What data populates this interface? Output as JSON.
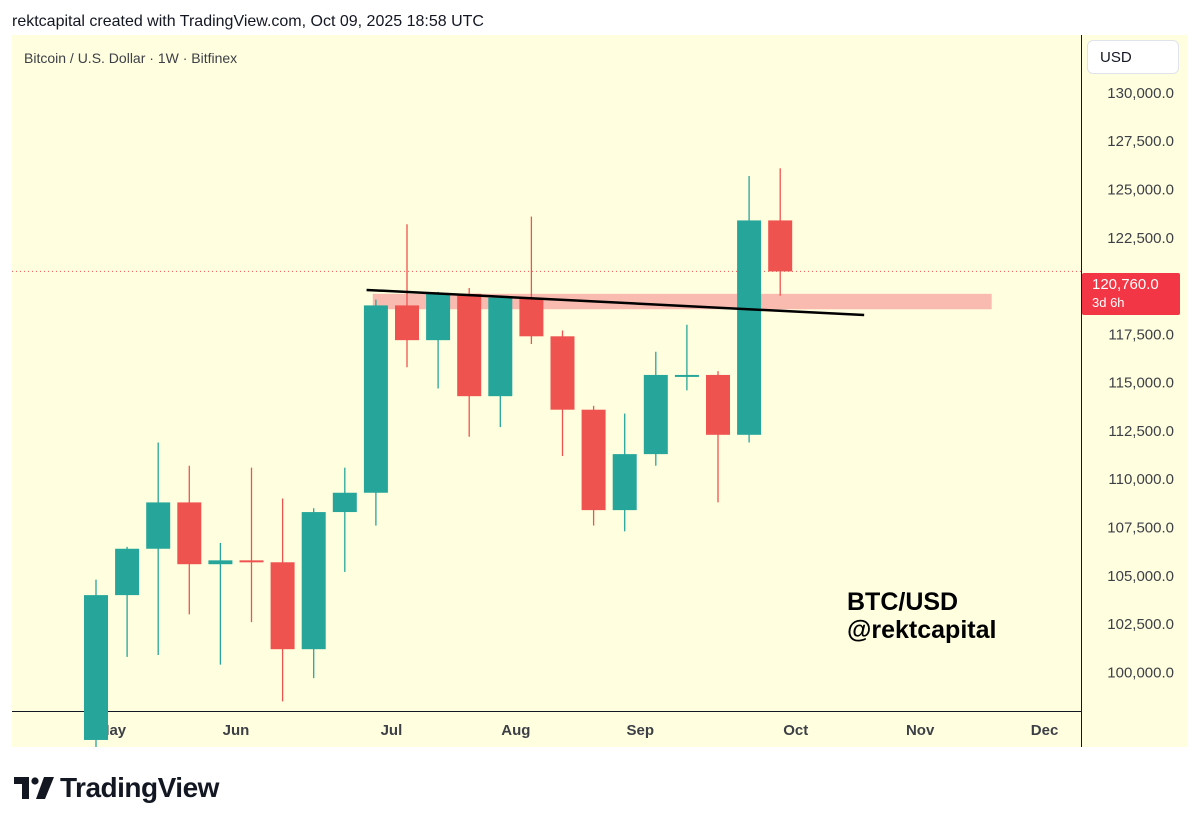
{
  "header": {
    "caption": "rektcapital created with TradingView.com, Oct 09, 2025 18:58 UTC"
  },
  "chart": {
    "symbol_title": "Bitcoin / U.S. Dollar · 1W · Bitfinex",
    "currency": "USD",
    "last_price_label": "120,760.0",
    "countdown": "3d 6h",
    "watermark_line1": "BTC/USD",
    "watermark_line2": "@rektcapital"
  },
  "colors": {
    "background": "#ffffe0",
    "up": "#26a69a",
    "down": "#ef5350",
    "zone": "#f7a3a0",
    "trendline": "#000000",
    "price_line": "#ef5350"
  },
  "footer": {
    "brand": "TradingView",
    "logo_icon": "tradingview-logo-icon"
  },
  "chart_data": {
    "type": "candlestick",
    "interval": "1W",
    "y_range": [
      98000,
      133000
    ],
    "y_ticks": [
      100000,
      102500,
      105000,
      107500,
      110000,
      112500,
      115000,
      117500,
      120000,
      122500,
      125000,
      127500,
      130000
    ],
    "y_tick_labels": [
      "100,000.0",
      "102,500.0",
      "105,000.0",
      "107,500.0",
      "110,000.0",
      "112,500.0",
      "115,000.0",
      "117,500.0",
      "120,000.0",
      "122,500.0",
      "125,000.0",
      "127,500.0",
      "130,000.0"
    ],
    "x_labels": [
      {
        "label": "May",
        "index": 0.5
      },
      {
        "label": "Jun",
        "index": 4.5
      },
      {
        "label": "Jul",
        "index": 9.5
      },
      {
        "label": "Aug",
        "index": 13.5
      },
      {
        "label": "Sep",
        "index": 17.5
      },
      {
        "label": "Oct",
        "index": 22.5
      },
      {
        "label": "Nov",
        "index": 26.5
      },
      {
        "label": "Dec",
        "index": 30.5
      }
    ],
    "candles": [
      {
        "o": 96500,
        "h": 104800,
        "l": 96000,
        "c": 104000
      },
      {
        "o": 104000,
        "h": 106500,
        "l": 100800,
        "c": 106400
      },
      {
        "o": 106400,
        "h": 111900,
        "l": 100900,
        "c": 108800
      },
      {
        "o": 108800,
        "h": 110700,
        "l": 103000,
        "c": 105600
      },
      {
        "o": 105600,
        "h": 106700,
        "l": 100400,
        "c": 105800
      },
      {
        "o": 105800,
        "h": 110600,
        "l": 102600,
        "c": 105700
      },
      {
        "o": 105700,
        "h": 109000,
        "l": 98500,
        "c": 101200
      },
      {
        "o": 101200,
        "h": 108500,
        "l": 99700,
        "c": 108300
      },
      {
        "o": 108300,
        "h": 110600,
        "l": 105200,
        "c": 109300
      },
      {
        "o": 109300,
        "h": 119300,
        "l": 107600,
        "c": 119000
      },
      {
        "o": 119000,
        "h": 123200,
        "l": 115800,
        "c": 117200
      },
      {
        "o": 117200,
        "h": 119700,
        "l": 114700,
        "c": 119600
      },
      {
        "o": 119600,
        "h": 119900,
        "l": 112200,
        "c": 114300
      },
      {
        "o": 114300,
        "h": 119500,
        "l": 112700,
        "c": 119400
      },
      {
        "o": 119400,
        "h": 123600,
        "l": 117000,
        "c": 117400
      },
      {
        "o": 117400,
        "h": 117700,
        "l": 111200,
        "c": 113600
      },
      {
        "o": 113600,
        "h": 113800,
        "l": 107600,
        "c": 108400
      },
      {
        "o": 108400,
        "h": 113400,
        "l": 107300,
        "c": 111300
      },
      {
        "o": 111300,
        "h": 116600,
        "l": 110700,
        "c": 115400
      },
      {
        "o": 115400,
        "h": 118000,
        "l": 114600,
        "c": 115400
      },
      {
        "o": 115400,
        "h": 115600,
        "l": 108800,
        "c": 112300
      },
      {
        "o": 112300,
        "h": 125700,
        "l": 111900,
        "c": 123400
      },
      {
        "o": 123400,
        "h": 126100,
        "l": 119500,
        "c": 120760
      }
    ],
    "last_price": 120760,
    "trendline": {
      "from": {
        "index": 8.7,
        "price": 119800
      },
      "to": {
        "index": 24.7,
        "price": 118500
      }
    },
    "support_zone": {
      "from_index": 8.9,
      "to_index": 28.8,
      "low": 118800,
      "high": 119600
    }
  }
}
